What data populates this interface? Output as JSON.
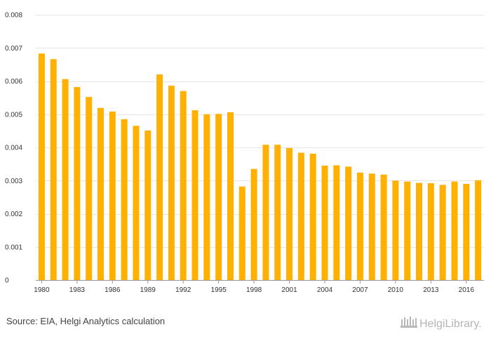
{
  "chart_data": {
    "type": "bar",
    "title": "",
    "xlabel": "",
    "ylabel": "",
    "ylim": [
      0,
      0.008
    ],
    "yticks": [
      "0",
      "0.001",
      "0.002",
      "0.003",
      "0.004",
      "0.005",
      "0.006",
      "0.007",
      "0.008"
    ],
    "yticks_values": [
      0,
      0.001,
      0.002,
      0.003,
      0.004,
      0.005,
      0.006,
      0.007,
      0.008
    ],
    "categories": [
      1980,
      1981,
      1982,
      1983,
      1984,
      1985,
      1986,
      1987,
      1988,
      1989,
      1990,
      1991,
      1992,
      1993,
      1994,
      1995,
      1996,
      1997,
      1998,
      1999,
      2000,
      2001,
      2002,
      2003,
      2004,
      2005,
      2006,
      2007,
      2008,
      2009,
      2010,
      2011,
      2012,
      2013,
      2014,
      2015,
      2016,
      2017
    ],
    "x_tick_labels": [
      "1980",
      "1983",
      "1986",
      "1989",
      "1992",
      "1995",
      "1998",
      "2001",
      "2004",
      "2007",
      "2010",
      "2013",
      "2016"
    ],
    "values": [
      0.00683,
      0.00666,
      0.00606,
      0.00582,
      0.00552,
      0.00519,
      0.00508,
      0.00485,
      0.00465,
      0.00451,
      0.0062,
      0.00586,
      0.0057,
      0.00512,
      0.005,
      0.00501,
      0.00506,
      0.00282,
      0.00335,
      0.00408,
      0.00408,
      0.00398,
      0.00384,
      0.00381,
      0.00345,
      0.00346,
      0.00342,
      0.00324,
      0.00321,
      0.00318,
      0.003,
      0.00297,
      0.00293,
      0.00292,
      0.00287,
      0.00297,
      0.0029,
      0.00301
    ],
    "bar_color": "#FFB000",
    "grid": true
  },
  "footer": {
    "source": "Source: EIA, Helgi Analytics calculation",
    "logo_text": "HelgiLibrary."
  }
}
